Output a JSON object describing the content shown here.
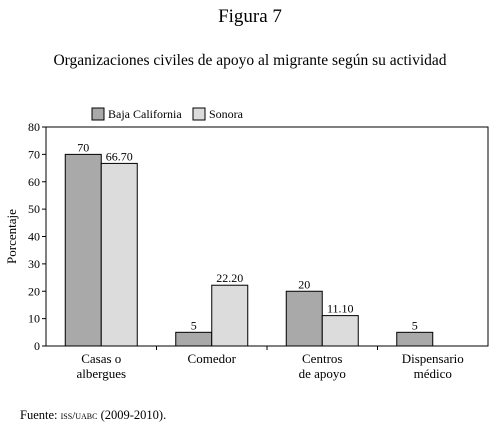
{
  "figure_label": "Figura 7",
  "source": {
    "prefix": "Fuente: ",
    "institution": "ISS/UABC",
    "period": " (2009-2010)."
  },
  "chart_data": {
    "type": "bar",
    "title": "Organizaciones civiles de apoyo al migrante según su actividad",
    "xlabel": "",
    "ylabel": "Porcentaje",
    "ylim": [
      0,
      80
    ],
    "yticks": [
      0,
      10,
      20,
      30,
      40,
      50,
      60,
      70,
      80
    ],
    "categories": [
      [
        "Casas o",
        "albergues"
      ],
      [
        "Comedor"
      ],
      [
        "Centros",
        "de apoyo"
      ],
      [
        "Dispensario",
        "médico"
      ]
    ],
    "series": [
      {
        "name": "Baja California",
        "values": [
          70,
          5,
          20,
          5
        ],
        "labels": [
          "70",
          "5",
          "20",
          "5"
        ],
        "color": "#a9a9a9"
      },
      {
        "name": "Sonora",
        "values": [
          66.7,
          22.2,
          11.1,
          0
        ],
        "labels": [
          "66.70",
          "22.20",
          "11.10",
          ""
        ],
        "color": "#dcdcdc"
      }
    ],
    "legend_position": "top-left",
    "grid": false
  }
}
